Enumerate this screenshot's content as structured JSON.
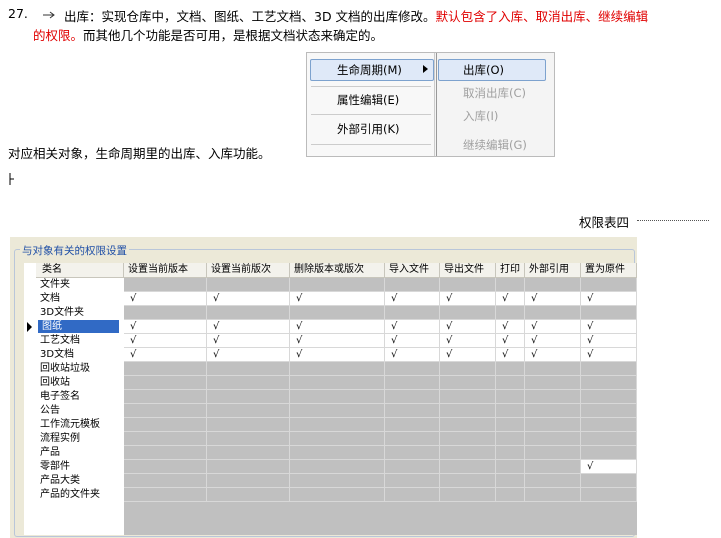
{
  "paragraph": {
    "number": "27.",
    "text": "出库：实现仓库中，文档、图纸、工艺文档、3D 文档的出库修改。",
    "emphasis": "默认包含了入库、取消出库、继续编辑的权限。",
    "rest": "而其他几个功能是否可用，是根据文档状态来确定的。"
  },
  "menu": {
    "items": [
      "生命周期(M)",
      "属性编辑(E)",
      "外部引用(K)"
    ],
    "submenu": [
      "出库(O)",
      "取消出库(C)",
      "入库(I)",
      "继续编辑(G)"
    ]
  },
  "line": "对应相关对象，生命周期里的出库、入库功能。",
  "caption": "权限表四",
  "table": {
    "title": "与对象有关的权限设置",
    "columns": [
      "类名",
      "设置当前版本",
      "设置当前版次",
      "删除版本或版次",
      "导入文件",
      "导出文件",
      "打印",
      "外部引用",
      "置为原件"
    ],
    "rows": [
      [
        "文件夹",
        null,
        null,
        null,
        null,
        null,
        null,
        null,
        null
      ],
      [
        "文档",
        "√",
        "√",
        "√",
        "√",
        "√",
        "√",
        "√",
        "√"
      ],
      [
        "3D文件夹",
        null,
        null,
        null,
        null,
        null,
        null,
        null,
        null
      ],
      [
        "图纸",
        "√",
        "√",
        "√",
        "√",
        "√",
        "√",
        "√",
        "√"
      ],
      [
        "工艺文档",
        "√",
        "√",
        "√",
        "√",
        "√",
        "√",
        "√",
        "√"
      ],
      [
        "3D文档",
        "√",
        "√",
        "√",
        "√",
        "√",
        "√",
        "√",
        "√"
      ],
      [
        "回收站垃圾",
        null,
        null,
        null,
        null,
        null,
        null,
        null,
        null
      ],
      [
        "回收站",
        null,
        null,
        null,
        null,
        null,
        null,
        null,
        null
      ],
      [
        "电子签名",
        null,
        null,
        null,
        null,
        null,
        null,
        null,
        null
      ],
      [
        "公告",
        null,
        null,
        null,
        null,
        null,
        null,
        null,
        null
      ],
      [
        "工作流元模板",
        null,
        null,
        null,
        null,
        null,
        null,
        null,
        null
      ],
      [
        "流程实例",
        null,
        null,
        null,
        null,
        null,
        null,
        null,
        null
      ],
      [
        "产品",
        null,
        null,
        null,
        null,
        null,
        null,
        null,
        null
      ],
      [
        "零部件",
        null,
        null,
        null,
        null,
        null,
        null,
        null,
        "√"
      ],
      [
        "产品大类",
        null,
        null,
        null,
        null,
        null,
        null,
        null,
        null
      ],
      [
        "产品的文件夹",
        null,
        null,
        null,
        null,
        null,
        null,
        null,
        null
      ]
    ]
  }
}
